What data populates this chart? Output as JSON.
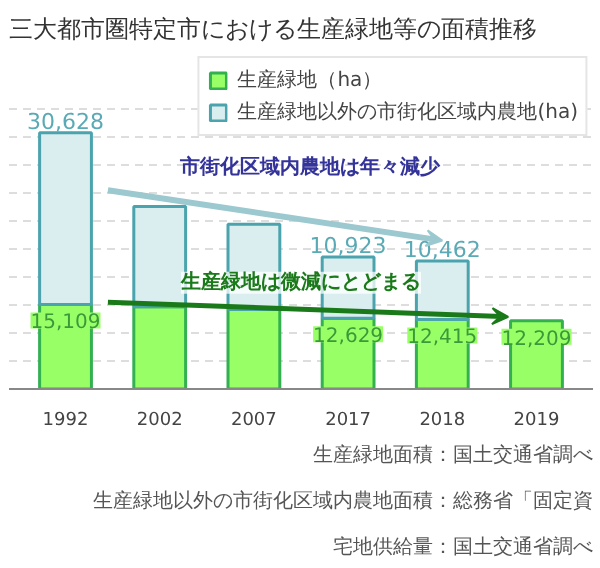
{
  "chart_data": {
    "type": "bar",
    "stacked": true,
    "title": "三大都市圏特定市における生産緑地等の面積推移",
    "categories": [
      "1992",
      "2002",
      "2007",
      "2017",
      "2018",
      "2019"
    ],
    "series": [
      {
        "name": "生産緑地（ha）",
        "color": "#99ff66",
        "values": [
          15109,
          14700,
          14200,
          12629,
          12415,
          12209
        ],
        "value_labels": [
          "15,109",
          null,
          null,
          "12,629",
          "12,415",
          "12,209"
        ]
      },
      {
        "name": "生産緑地以外の市街化区域内農地(ha)",
        "color": "#daeef0",
        "values": [
          30628,
          17900,
          15200,
          10923,
          10462,
          null
        ],
        "value_labels": [
          "30,628",
          null,
          null,
          "10,923",
          "10,462",
          null
        ]
      }
    ],
    "ylim": [
      0,
      60000
    ],
    "yticks": [
      0,
      5000,
      10000,
      15000,
      20000,
      25000,
      30000,
      35000,
      40000,
      45000,
      50000
    ],
    "tick_labels": "x",
    "grid": "y",
    "legend": "top right",
    "annotations": [
      "市街化区域内農地は年々減少",
      "生産緑地は微減にとどまる",
      "生産緑地面積：国土交通省調べ",
      "生産緑地以外の市街化区域内農地面積：総務省「固定資",
      "宅地供給量：国土交通省調べ"
    ]
  }
}
